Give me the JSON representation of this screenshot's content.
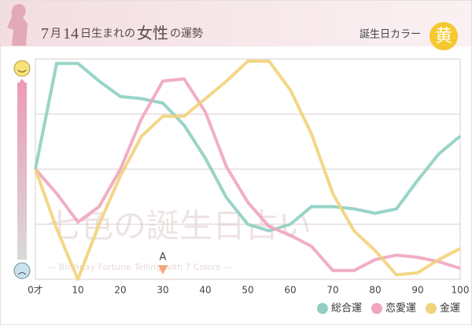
{
  "header": {
    "title_parts": [
      "7",
      "月",
      "14",
      "日生まれの",
      "女性",
      "の運勢"
    ],
    "color_label": "誕生日カラー",
    "color_name": "黄"
  },
  "chart_data": {
    "type": "line",
    "x": [
      0,
      5,
      10,
      15,
      20,
      25,
      30,
      35,
      40,
      45,
      50,
      55,
      60,
      65,
      70,
      75,
      80,
      85,
      90,
      95,
      100
    ],
    "xlim": [
      0,
      100
    ],
    "xticks": [
      {
        "value": 0,
        "label": "0才"
      },
      10,
      20,
      30,
      40,
      50,
      60,
      70,
      80,
      90,
      100
    ],
    "ylim": [
      0,
      100
    ],
    "yticks": [
      0,
      25,
      50,
      75,
      100
    ],
    "grid": true,
    "series": [
      {
        "name": "総合運",
        "color": "#8ecfc2",
        "values": [
          50,
          98,
          98,
          90,
          83,
          82,
          80,
          70,
          55,
          37,
          25,
          22,
          25,
          33,
          33,
          32,
          30,
          32,
          45,
          57,
          65
        ]
      },
      {
        "name": "恋愛運",
        "color": "#f0a5bf",
        "values": [
          50,
          39,
          26,
          33,
          50,
          73,
          90,
          91,
          76,
          51,
          35,
          24,
          20,
          15,
          4,
          4,
          9,
          11,
          10,
          8,
          5
        ]
      },
      {
        "name": "金運",
        "color": "#f2d27a",
        "values": [
          50,
          23,
          0,
          25,
          47,
          65,
          74,
          74,
          82,
          90,
          99,
          99,
          86,
          66,
          39,
          22,
          13,
          2,
          3,
          9,
          14
        ]
      }
    ],
    "annotations": [
      {
        "x": 30,
        "label": "A"
      }
    ],
    "watermark": [
      "七色の誕生日占い",
      "— Birthday Fortune Telling with 7 Colors —"
    ],
    "legend": "bottom-right"
  }
}
